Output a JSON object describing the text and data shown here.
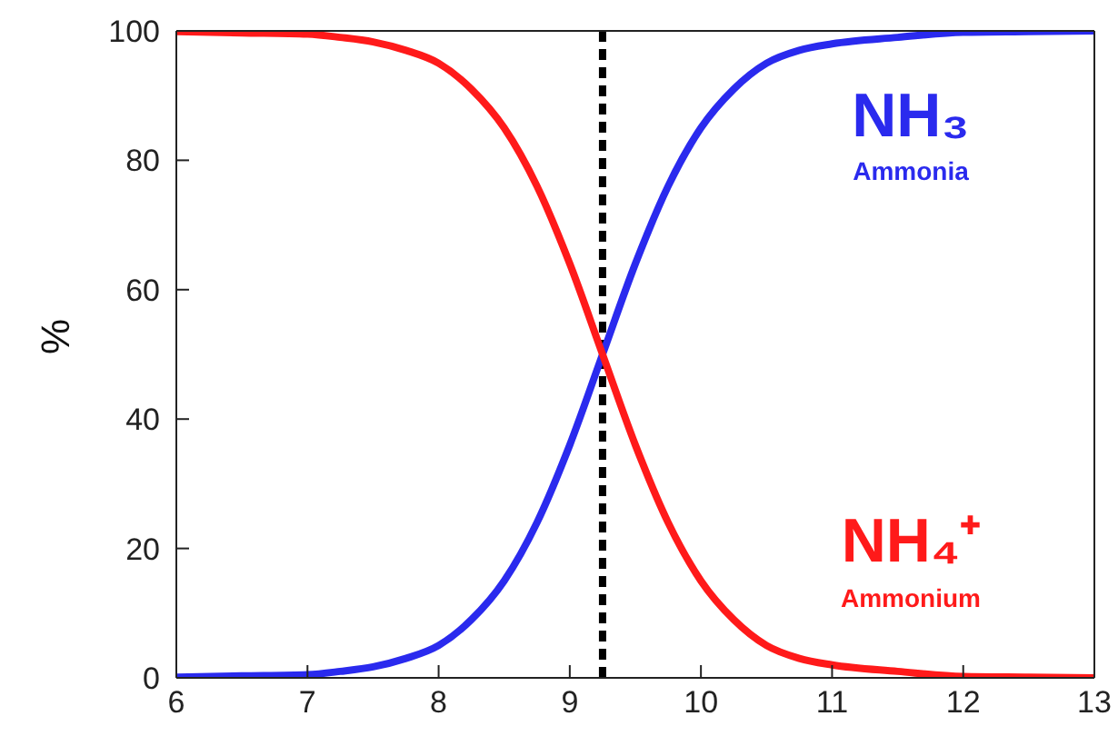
{
  "chart_data": {
    "type": "line",
    "ylabel": "%",
    "xlim": [
      6,
      13
    ],
    "xticks": [
      6,
      7,
      8,
      9,
      10,
      11,
      12,
      13
    ],
    "ylim": [
      0,
      100
    ],
    "yticks": [
      0,
      20,
      40,
      60,
      80,
      100
    ],
    "marker": "none",
    "line_style": "solid",
    "x": [
      6,
      6.5,
      7,
      7.25,
      7.5,
      7.75,
      8,
      8.25,
      8.5,
      8.75,
      9,
      9.25,
      9.5,
      9.75,
      10,
      10.25,
      10.5,
      10.75,
      11,
      11.5,
      12,
      12.5,
      13
    ],
    "series": [
      {
        "name": "NH₃",
        "color": "#2a2aee",
        "values": [
          0.1,
          0.3,
          0.5,
          1,
          1.7,
          3,
          5,
          9,
          15,
          24,
          36,
          50,
          64,
          76,
          85,
          91,
          95,
          97,
          98,
          99,
          99.8,
          99.9,
          100
        ]
      },
      {
        "name": "NH₄⁺",
        "color": "#ff1a1a",
        "values": [
          99.9,
          99.7,
          99.5,
          99,
          98.3,
          97,
          95,
          91,
          85,
          76,
          64,
          50,
          36,
          24,
          15,
          9,
          5,
          3,
          2,
          1,
          0.2,
          0.1,
          0
        ]
      }
    ],
    "annotations": [
      "Ammonia",
      "Ammonium"
    ],
    "ref_lines": [
      {
        "axis": "x",
        "value": 9.25,
        "color": "#000000",
        "line_style": "dashed"
      }
    ]
  }
}
